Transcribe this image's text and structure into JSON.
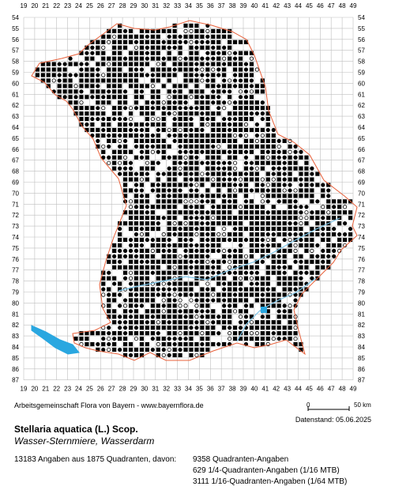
{
  "map": {
    "x_labels": [
      "19",
      "20",
      "21",
      "22",
      "23",
      "24",
      "25",
      "26",
      "27",
      "28",
      "29",
      "30",
      "31",
      "32",
      "33",
      "34",
      "35",
      "36",
      "37",
      "38",
      "39",
      "40",
      "41",
      "42",
      "43",
      "44",
      "45",
      "46",
      "47",
      "48",
      "49"
    ],
    "y_labels": [
      "54",
      "55",
      "56",
      "57",
      "58",
      "59",
      "60",
      "61",
      "62",
      "63",
      "64",
      "65",
      "66",
      "67",
      "68",
      "69",
      "70",
      "71",
      "72",
      "73",
      "74",
      "75",
      "76",
      "77",
      "78",
      "79",
      "80",
      "81",
      "82",
      "83",
      "84",
      "85",
      "86",
      "87"
    ],
    "colors": {
      "grid": "#bfbfbf",
      "border": "#e8603a",
      "water": "#2aa7e0",
      "dot": "#000000",
      "river": "#7fc7ea"
    }
  },
  "scale": {
    "left_label": "0",
    "right_label": "50 km"
  },
  "credit": "Arbeitsgemeinschaft Flora von Bayern - www.bayernflora.de",
  "date": "Datenstand: 05.06.2025",
  "species": {
    "scientific": "Stellaria aquatica (L.) Scop.",
    "common": "Wasser-Sternmiere, Wasserdarm"
  },
  "stats": {
    "summary": "13183 Angaben aus 1875 Quadranten, davon:",
    "lines": [
      "9358 Quadranten-Angaben",
      "629 1/4-Quadranten-Angaben (1/16 MTB)",
      "3111 1/16-Quadranten-Angaben (1/64 MTB)"
    ]
  }
}
